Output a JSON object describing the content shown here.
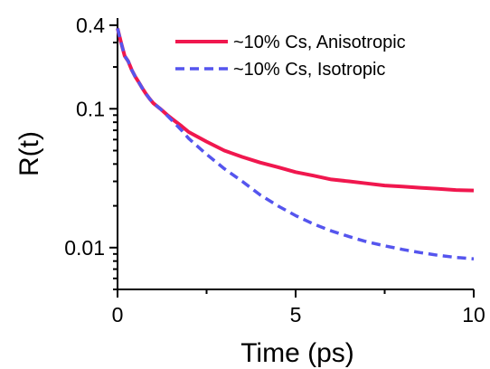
{
  "chart_data": {
    "type": "line",
    "xlabel": "Time (ps)",
    "ylabel": "R(t)",
    "xlim": [
      0,
      10
    ],
    "ylim": [
      0.005,
      0.45
    ],
    "yscale": "log",
    "x_ticks": [
      0,
      5,
      10
    ],
    "x_tick_labels": [
      "0",
      "5",
      "10"
    ],
    "y_ticks": [
      0.4,
      0.1,
      0.01
    ],
    "y_tick_labels": [
      "0.4",
      "0.1",
      "0.01"
    ],
    "grid": false,
    "legend_position": "top-right",
    "series": [
      {
        "name": "~10% Cs, Anisotropic",
        "color": "#f0174e",
        "style": "solid",
        "x": [
          0,
          0.1,
          0.2,
          0.3,
          0.4,
          0.5,
          0.6,
          0.7,
          0.8,
          0.9,
          1.0,
          1.2,
          1.4,
          1.6,
          1.8,
          2.0,
          2.5,
          3.0,
          3.5,
          4.0,
          4.5,
          5.0,
          5.5,
          6.0,
          6.5,
          7.0,
          7.5,
          8.0,
          8.5,
          9.0,
          9.5,
          10.0
        ],
        "y": [
          0.38,
          0.3,
          0.24,
          0.22,
          0.19,
          0.17,
          0.155,
          0.14,
          0.128,
          0.118,
          0.11,
          0.1,
          0.09,
          0.082,
          0.075,
          0.068,
          0.058,
          0.05,
          0.045,
          0.041,
          0.038,
          0.035,
          0.033,
          0.031,
          0.03,
          0.029,
          0.028,
          0.0275,
          0.027,
          0.0265,
          0.026,
          0.0258
        ]
      },
      {
        "name": "~10% Cs, Isotropic",
        "color": "#5555ee",
        "style": "dashed",
        "x": [
          0,
          0.1,
          0.2,
          0.3,
          0.4,
          0.5,
          0.6,
          0.7,
          0.8,
          0.9,
          1.0,
          1.2,
          1.4,
          1.6,
          1.8,
          2.0,
          2.5,
          3.0,
          3.5,
          4.0,
          4.5,
          5.0,
          5.5,
          6.0,
          6.5,
          7.0,
          7.5,
          8.0,
          8.5,
          9.0,
          9.5,
          10.0
        ],
        "y": [
          0.38,
          0.3,
          0.24,
          0.22,
          0.19,
          0.17,
          0.155,
          0.14,
          0.128,
          0.118,
          0.11,
          0.1,
          0.089,
          0.079,
          0.07,
          0.061,
          0.047,
          0.037,
          0.03,
          0.024,
          0.02,
          0.017,
          0.0148,
          0.0132,
          0.012,
          0.011,
          0.0103,
          0.0097,
          0.0092,
          0.0088,
          0.0085,
          0.0083
        ]
      }
    ]
  }
}
